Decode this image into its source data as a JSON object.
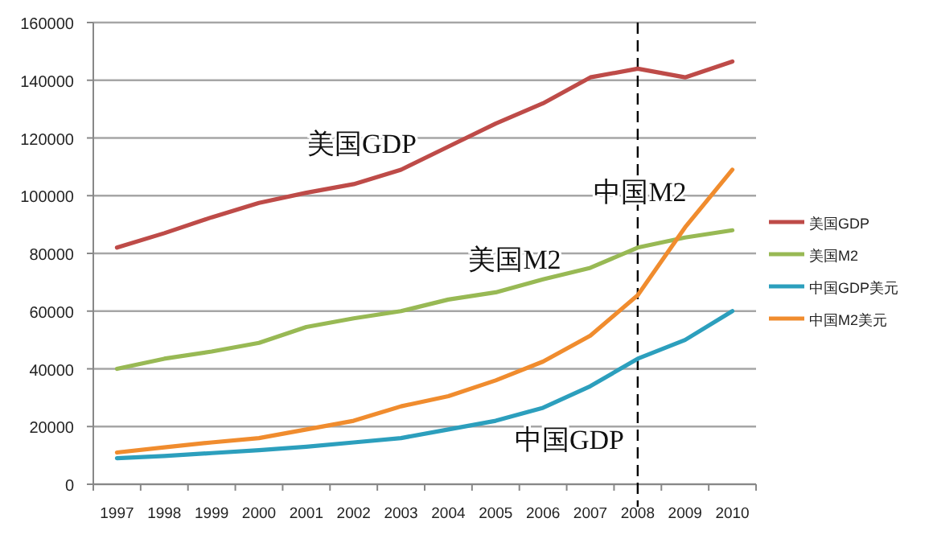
{
  "chart_data": {
    "type": "line",
    "categories": [
      "1997",
      "1998",
      "1999",
      "2000",
      "2001",
      "2002",
      "2003",
      "2004",
      "2005",
      "2006",
      "2007",
      "2008",
      "2009",
      "2010"
    ],
    "series": [
      {
        "name": "美国GDP",
        "color": "#be4b48",
        "values": [
          82000,
          87000,
          92500,
          97500,
          101000,
          104000,
          109000,
          117000,
          125000,
          132000,
          141000,
          144000,
          141000,
          146500
        ]
      },
      {
        "name": "美国M2",
        "color": "#98b954",
        "values": [
          40000,
          43500,
          46000,
          49000,
          54500,
          57500,
          60000,
          64000,
          66500,
          71000,
          75000,
          82000,
          85500,
          88000
        ]
      },
      {
        "name": "中国GDP美元",
        "color": "#2c9fbd",
        "values": [
          9000,
          9800,
          10800,
          11800,
          13000,
          14500,
          16000,
          19000,
          22000,
          26500,
          34000,
          43500,
          50000,
          60000
        ]
      },
      {
        "name": "中国M2美元",
        "color": "#f08c2e",
        "values": [
          11000,
          12800,
          14500,
          16000,
          19000,
          22000,
          27000,
          30500,
          36000,
          42500,
          51500,
          65500,
          89000,
          109000
        ]
      }
    ],
    "ylim": [
      0,
      160000
    ],
    "yticks": [
      0,
      20000,
      40000,
      60000,
      80000,
      100000,
      120000,
      140000,
      160000
    ],
    "grid": "y",
    "legend": "right",
    "marker": "none",
    "line_style": "solid",
    "ref_lines": [
      {
        "axis": "x",
        "value": "2008",
        "line_style": "dashed",
        "color": "#000000"
      }
    ],
    "annotations": [
      "美国GDP",
      "美国M2",
      "中国M2",
      "中国GDP"
    ]
  }
}
